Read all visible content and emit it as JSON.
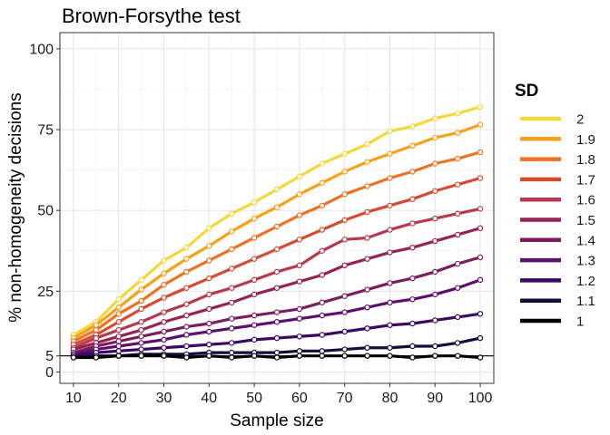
{
  "chart_data": {
    "type": "line",
    "title": "Brown-Forsythe test",
    "xlabel": "Sample size",
    "ylabel": "% non-homogeneity decisions",
    "x": [
      10,
      15,
      20,
      25,
      30,
      35,
      40,
      45,
      50,
      55,
      60,
      65,
      70,
      75,
      80,
      85,
      90,
      95,
      100
    ],
    "xlim": [
      7,
      103
    ],
    "ylim": [
      -3.5,
      105
    ],
    "x_ticks": [
      "10",
      "20",
      "30",
      "40",
      "50",
      "60",
      "70",
      "80",
      "90",
      "100"
    ],
    "y_ticks": [
      "0",
      "5",
      "25",
      "50",
      "75",
      "100"
    ],
    "reference_line": {
      "y": 5
    },
    "grid": true,
    "legend": {
      "title": "SD",
      "position": "right"
    },
    "series": [
      {
        "name": "2",
        "color": "#F2D83B",
        "values": [
          11.5,
          15.5,
          22.5,
          28.5,
          34.5,
          38.5,
          44.5,
          49.0,
          52.5,
          56.5,
          60.5,
          64.5,
          67.5,
          70.5,
          74.5,
          76.0,
          78.5,
          80.0,
          82.0
        ]
      },
      {
        "name": "1.9",
        "color": "#F6A117",
        "values": [
          10.5,
          14.5,
          20.0,
          25.5,
          30.5,
          35.0,
          39.0,
          43.5,
          47.5,
          51.0,
          55.0,
          58.5,
          62.0,
          65.0,
          67.5,
          70.0,
          72.5,
          74.0,
          76.5
        ]
      },
      {
        "name": "1.8",
        "color": "#EC7325",
        "values": [
          9.5,
          13.0,
          18.0,
          22.0,
          27.0,
          31.0,
          34.5,
          38.0,
          41.5,
          45.0,
          48.5,
          51.5,
          55.0,
          57.5,
          60.0,
          62.0,
          64.5,
          66.0,
          68.0
        ]
      },
      {
        "name": "1.7",
        "color": "#D44B34",
        "values": [
          8.5,
          11.5,
          15.5,
          19.5,
          23.0,
          26.0,
          29.0,
          32.0,
          35.0,
          38.0,
          41.0,
          44.0,
          47.0,
          49.5,
          51.5,
          53.5,
          56.0,
          58.0,
          60.0
        ]
      },
      {
        "name": "1.6",
        "color": "#B63A4D",
        "values": [
          7.5,
          10.5,
          13.0,
          15.5,
          18.5,
          21.0,
          24.0,
          26.0,
          28.5,
          31.0,
          33.0,
          37.5,
          41.0,
          41.5,
          44.0,
          46.0,
          47.5,
          49.0,
          50.5
        ]
      },
      {
        "name": "1.5",
        "color": "#942451",
        "values": [
          7.0,
          9.0,
          11.0,
          13.0,
          15.5,
          17.5,
          19.5,
          21.5,
          24.0,
          26.0,
          28.0,
          30.0,
          33.0,
          35.0,
          37.0,
          38.5,
          40.5,
          42.5,
          44.5
        ]
      },
      {
        "name": "1.4",
        "color": "#7A1F5E",
        "values": [
          6.0,
          8.0,
          9.5,
          11.0,
          12.5,
          14.0,
          15.0,
          16.5,
          17.5,
          18.5,
          19.5,
          21.5,
          23.5,
          25.5,
          27.5,
          29.0,
          31.0,
          33.5,
          35.5
        ]
      },
      {
        "name": "1.3",
        "color": "#5C0F6E",
        "values": [
          5.5,
          7.0,
          8.0,
          9.0,
          10.0,
          11.5,
          12.5,
          13.5,
          14.5,
          15.5,
          16.5,
          17.5,
          18.5,
          20.0,
          21.5,
          22.5,
          24.0,
          26.0,
          28.5
        ]
      },
      {
        "name": "1.2",
        "color": "#3A0964",
        "values": [
          5.0,
          6.0,
          6.5,
          7.0,
          7.5,
          8.0,
          8.5,
          9.0,
          10.0,
          10.5,
          11.0,
          11.5,
          12.5,
          13.5,
          14.5,
          15.0,
          16.0,
          17.0,
          18.0
        ]
      },
      {
        "name": "1.1",
        "color": "#160B39",
        "values": [
          4.5,
          5.0,
          5.0,
          5.5,
          5.5,
          5.5,
          6.0,
          6.0,
          6.0,
          6.0,
          6.5,
          6.5,
          7.0,
          7.5,
          7.5,
          8.0,
          8.0,
          9.0,
          10.5
        ]
      },
      {
        "name": "1",
        "color": "#000004",
        "values": [
          4.5,
          4.5,
          5.0,
          5.0,
          5.0,
          4.5,
          5.0,
          4.5,
          5.0,
          4.5,
          5.0,
          5.0,
          5.0,
          5.0,
          5.0,
          4.5,
          5.0,
          5.0,
          4.5
        ]
      }
    ]
  }
}
